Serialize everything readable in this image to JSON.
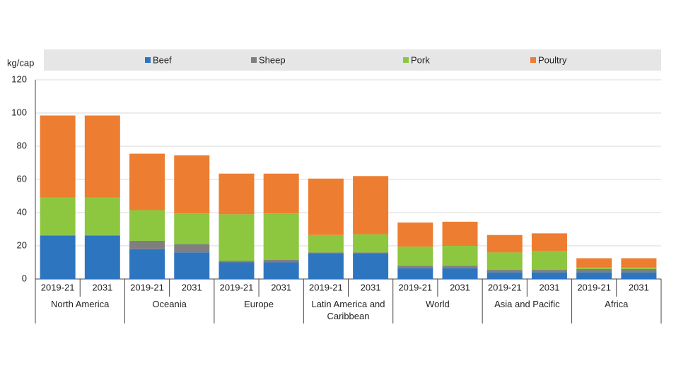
{
  "chart_data": {
    "type": "stacked_bar",
    "y_label": "kg/cap",
    "categories": [
      "2019-21",
      "2031",
      "2019-21",
      "2031",
      "2019-21",
      "2031",
      "2019-21",
      "2031",
      "2019-21",
      "2031",
      "2019-21",
      "2031",
      "2019-21",
      "2031"
    ],
    "groups": [
      "North America",
      "Oceania",
      "Europe",
      "Latin America and Caribbean",
      "World",
      "Asia and Pacific",
      "Africa"
    ],
    "series": [
      {
        "name": "Beef",
        "color": "#2e75c0",
        "values": [
          26,
          26,
          18,
          16,
          10,
          10,
          15.5,
          15.5,
          6.5,
          6.5,
          4,
          4,
          4,
          4
        ]
      },
      {
        "name": "Sheep",
        "color": "#7f7f7f",
        "values": [
          0.5,
          0.5,
          5,
          5,
          1,
          1.5,
          0.5,
          0.5,
          1.5,
          1.5,
          1.5,
          1.5,
          2,
          2
        ]
      },
      {
        "name": "Pork",
        "color": "#8dc63f",
        "values": [
          22.5,
          22.5,
          18.5,
          18.5,
          28,
          28,
          10.5,
          11,
          11.5,
          12,
          10.5,
          11.5,
          1,
          1
        ]
      },
      {
        "name": "Poultry",
        "color": "#ed7d31",
        "values": [
          49.5,
          49.5,
          34,
          35,
          24.5,
          24,
          34,
          35,
          14.5,
          14.5,
          10.5,
          10.5,
          5.5,
          5.5
        ]
      }
    ],
    "ylim": [
      0,
      120
    ],
    "yticks": [
      0,
      20,
      40,
      60,
      80,
      100,
      120
    ],
    "grid": true
  }
}
